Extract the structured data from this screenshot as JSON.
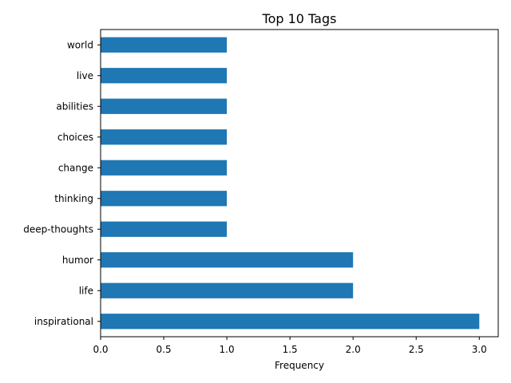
{
  "chart_data": {
    "type": "bar",
    "orientation": "horizontal",
    "title": "Top 10 Tags",
    "xlabel": "Frequency",
    "ylabel": "",
    "categories": [
      "inspirational",
      "life",
      "humor",
      "deep-thoughts",
      "thinking",
      "change",
      "choices",
      "abilities",
      "live",
      "world"
    ],
    "values": [
      3,
      2,
      2,
      1,
      1,
      1,
      1,
      1,
      1,
      1
    ],
    "xlim": [
      0,
      3.15
    ],
    "xticks": [
      "0.0",
      "0.5",
      "1.0",
      "1.5",
      "2.0",
      "2.5",
      "3.0"
    ],
    "grid": false,
    "legend": "none",
    "bar_color": "#1f77b4"
  }
}
